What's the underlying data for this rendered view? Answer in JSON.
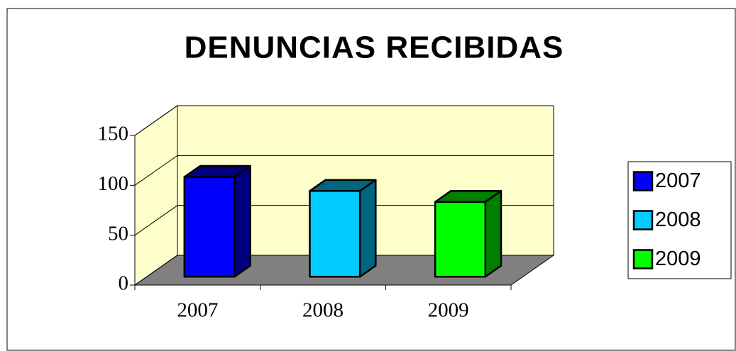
{
  "chart_data": {
    "type": "bar3d",
    "title": "DENUNCIAS RECIBIDAS",
    "categories": [
      "2007",
      "2008",
      "2009"
    ],
    "values": [
      100,
      86,
      75
    ],
    "colors": [
      "#0000ff",
      "#00ccff",
      "#00ff00"
    ],
    "ylim": [
      0,
      150
    ],
    "yticks": [
      0,
      50,
      100,
      150
    ],
    "grid": true,
    "legend": "right"
  }
}
